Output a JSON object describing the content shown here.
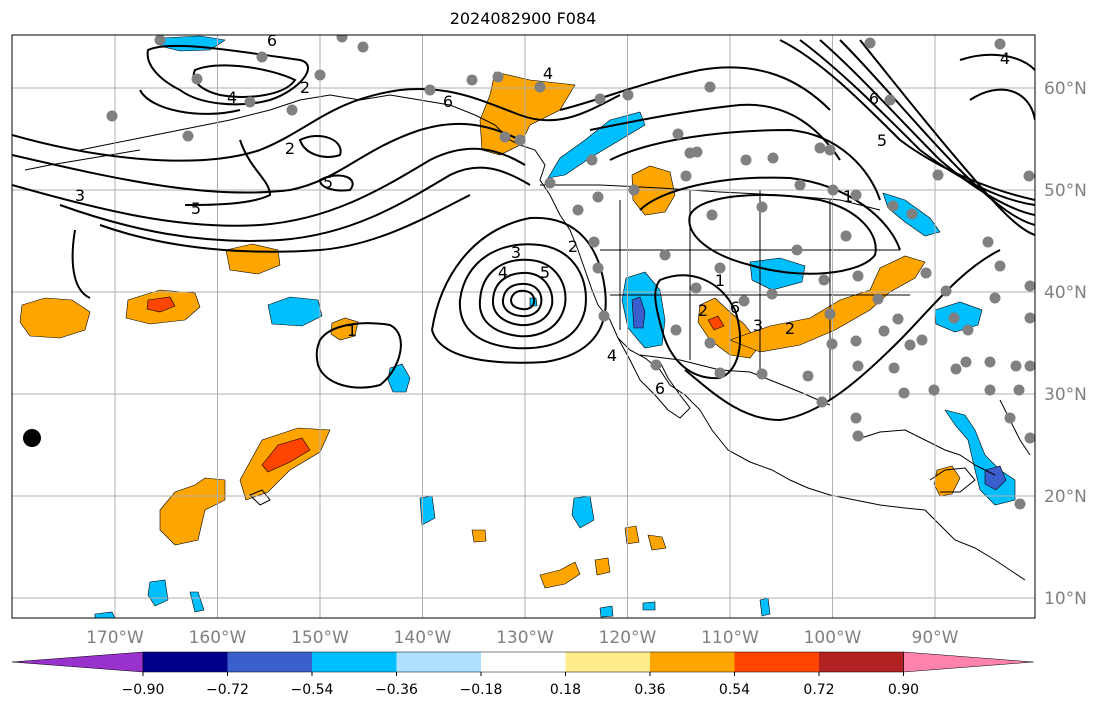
{
  "title": "2024082900 F084",
  "latitudes": [
    {
      "value": 60,
      "label": "60°N"
    },
    {
      "value": 50,
      "label": "50°N"
    },
    {
      "value": 40,
      "label": "40°N"
    },
    {
      "value": 30,
      "label": "30°N"
    },
    {
      "value": 20,
      "label": "20°N"
    },
    {
      "value": 10,
      "label": "10°N"
    }
  ],
  "longitudes": [
    {
      "value": -170,
      "label": "170°W"
    },
    {
      "value": -160,
      "label": "160°W"
    },
    {
      "value": -150,
      "label": "150°W"
    },
    {
      "value": -140,
      "label": "140°W"
    },
    {
      "value": -130,
      "label": "130°W"
    },
    {
      "value": -120,
      "label": "120°W"
    },
    {
      "value": -110,
      "label": "110°W"
    },
    {
      "value": -100,
      "label": "100°W"
    },
    {
      "value": -90,
      "label": "90°W"
    }
  ],
  "colorbar": {
    "ticks": [
      "−0.90",
      "−0.72",
      "−0.54",
      "−0.36",
      "−0.18",
      "0.18",
      "0.36",
      "0.54",
      "0.72",
      "0.90"
    ],
    "colors": {
      "under": "#9932cc",
      "bins": [
        "#00008b",
        "#3a5fcd",
        "#00bfff",
        "#b0e2ff",
        "#ffffff",
        "#ffec8b",
        "#ffa500",
        "#ff4500",
        "#b22222"
      ],
      "over": "#ff82ab"
    }
  },
  "contour_labels": [
    "6",
    "4",
    "2",
    "1",
    "5",
    "3",
    "4",
    "5",
    "2",
    "3",
    "4",
    "6",
    "5",
    "1",
    "4",
    "6",
    "2",
    "1",
    "4",
    "6",
    "2",
    "3",
    "5",
    "6",
    "4",
    "2",
    "3",
    "2"
  ],
  "colors": {
    "orange": "#ffa500",
    "red_orange": "#ff4500",
    "deep_sky_blue": "#00bfff",
    "royal_blue": "#3a5fcd",
    "station_gray": "#808080",
    "grid_gray": "#b0b0b0"
  }
}
